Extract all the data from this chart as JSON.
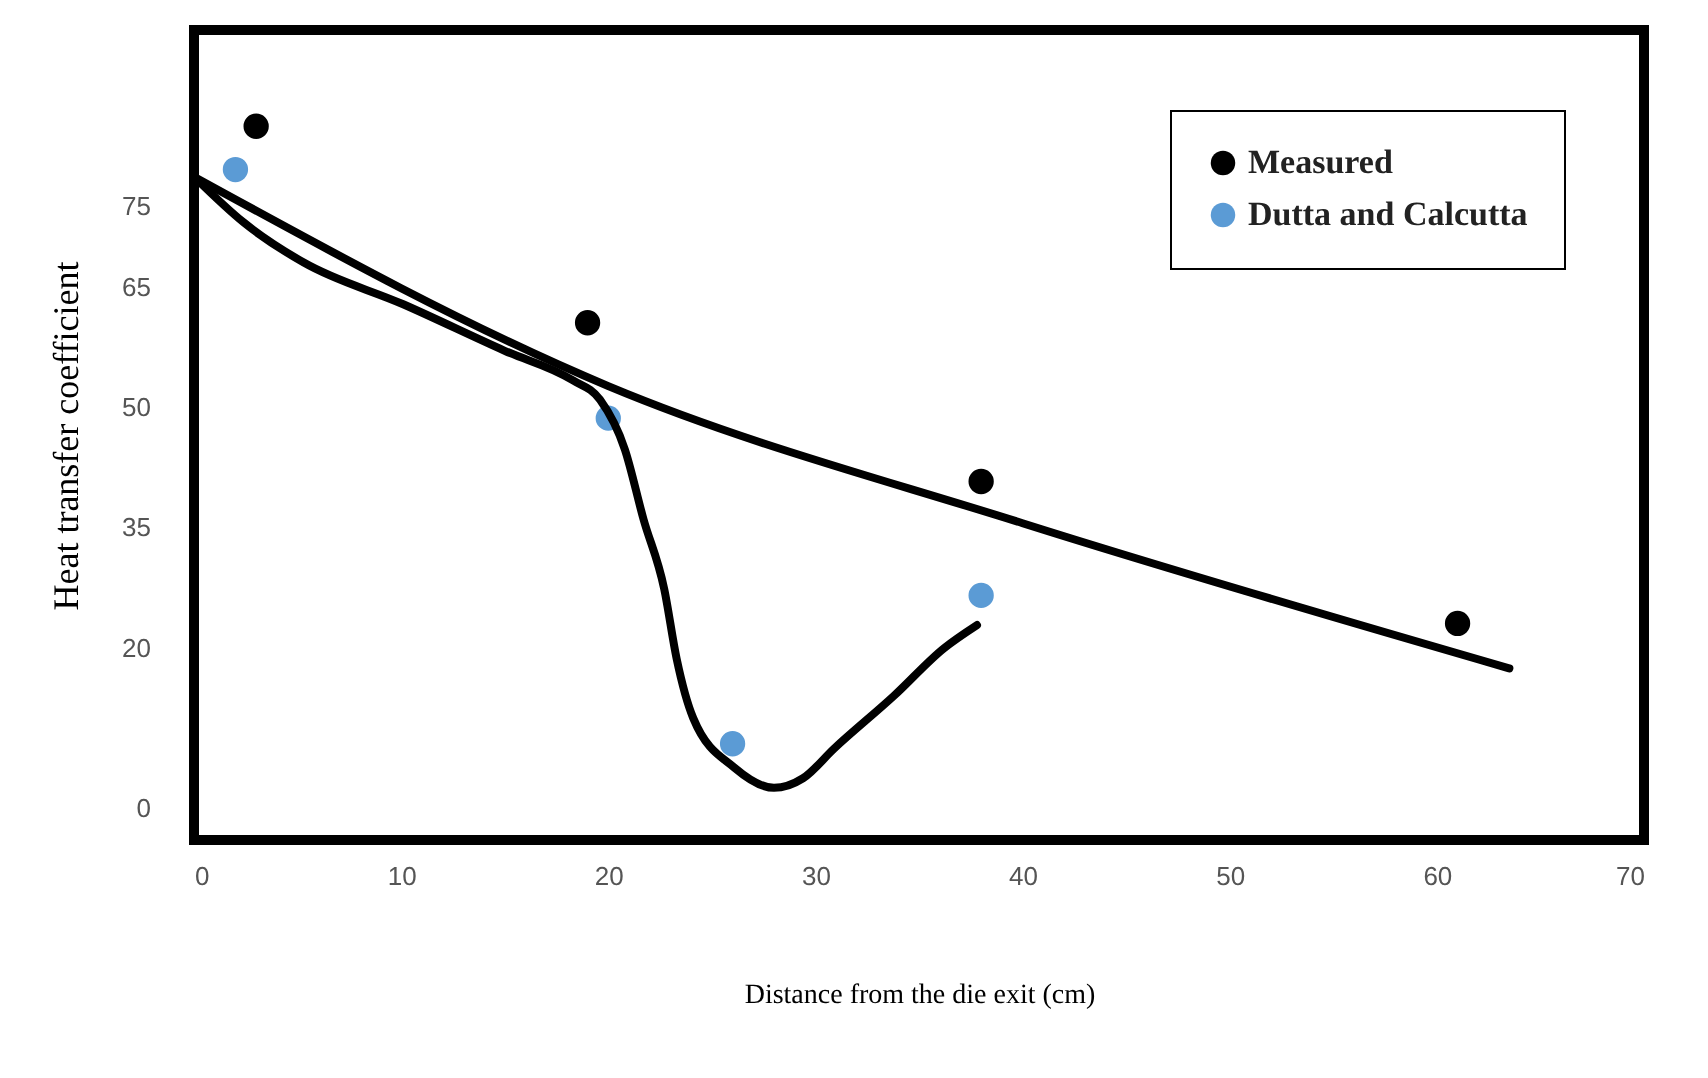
{
  "chart_data": {
    "type": "scatter",
    "xlabel": "Distance from the die exit (cm)",
    "ylabel": "Heat transfer coefficient",
    "xlim": [
      0,
      70
    ],
    "xticks": [
      0,
      10,
      20,
      30,
      40,
      50,
      60,
      70
    ],
    "ylim": [
      -4,
      97
    ],
    "yticks": [
      0,
      20,
      35,
      50,
      65,
      75
    ],
    "grid": false,
    "legend": "top right",
    "series": [
      {
        "name": "Measured",
        "marker": "circle",
        "color": "#000000",
        "x": [
          3,
          19,
          38,
          61
        ],
        "values": [
          85,
          60.5,
          40.7,
          23
        ]
      },
      {
        "name": "Dutta and Calcutta",
        "marker": "circle",
        "color": "#5b9bd5",
        "x": [
          2,
          20,
          26,
          38
        ],
        "values": [
          79.6,
          48.6,
          8,
          26.5
        ]
      },
      {
        "type": "line",
        "color": "#000000",
        "x": [
          0,
          20,
          40,
          63.5
        ],
        "values": [
          78.7,
          52.6,
          35.5,
          17.4
        ]
      },
      {
        "type": "line",
        "color": "#000000",
        "x": [
          0,
          2.4,
          5.3,
          10.1,
          15,
          18.3,
          19.6,
          20.8,
          21.7,
          22.7,
          23.3,
          24.1,
          26.1,
          28,
          29.4,
          30.9,
          33.8,
          36.2,
          37.8
        ],
        "values": [
          78.7,
          73,
          68,
          62.8,
          57,
          53.3,
          50.9,
          44.7,
          36,
          27.3,
          18.6,
          11.2,
          5,
          2.5,
          3.7,
          7.4,
          14,
          19.9,
          22.8
        ]
      }
    ]
  }
}
